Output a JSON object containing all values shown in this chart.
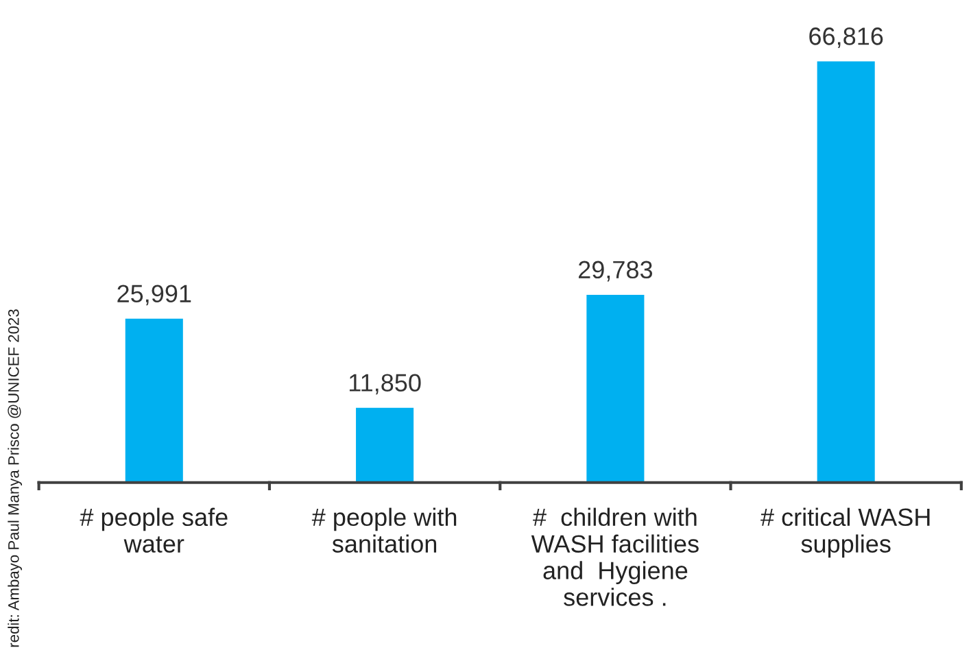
{
  "chart_data": {
    "type": "bar",
    "categories": [
      "# people safe\nwater",
      "# people with\nsanitation",
      "#  children with\nWASH facilities\nand  Hygiene\nservices .",
      "# critical WASH\nsupplies"
    ],
    "values": [
      25991,
      11850,
      29783,
      66816
    ],
    "value_labels": [
      "25,991",
      "11,850",
      "29,783",
      "66,816"
    ],
    "color": "#00b0f0",
    "annotations": [
      "redit: Ambayo Paul Manya Prisco @UNICEF 2023"
    ],
    "grid": false
  }
}
